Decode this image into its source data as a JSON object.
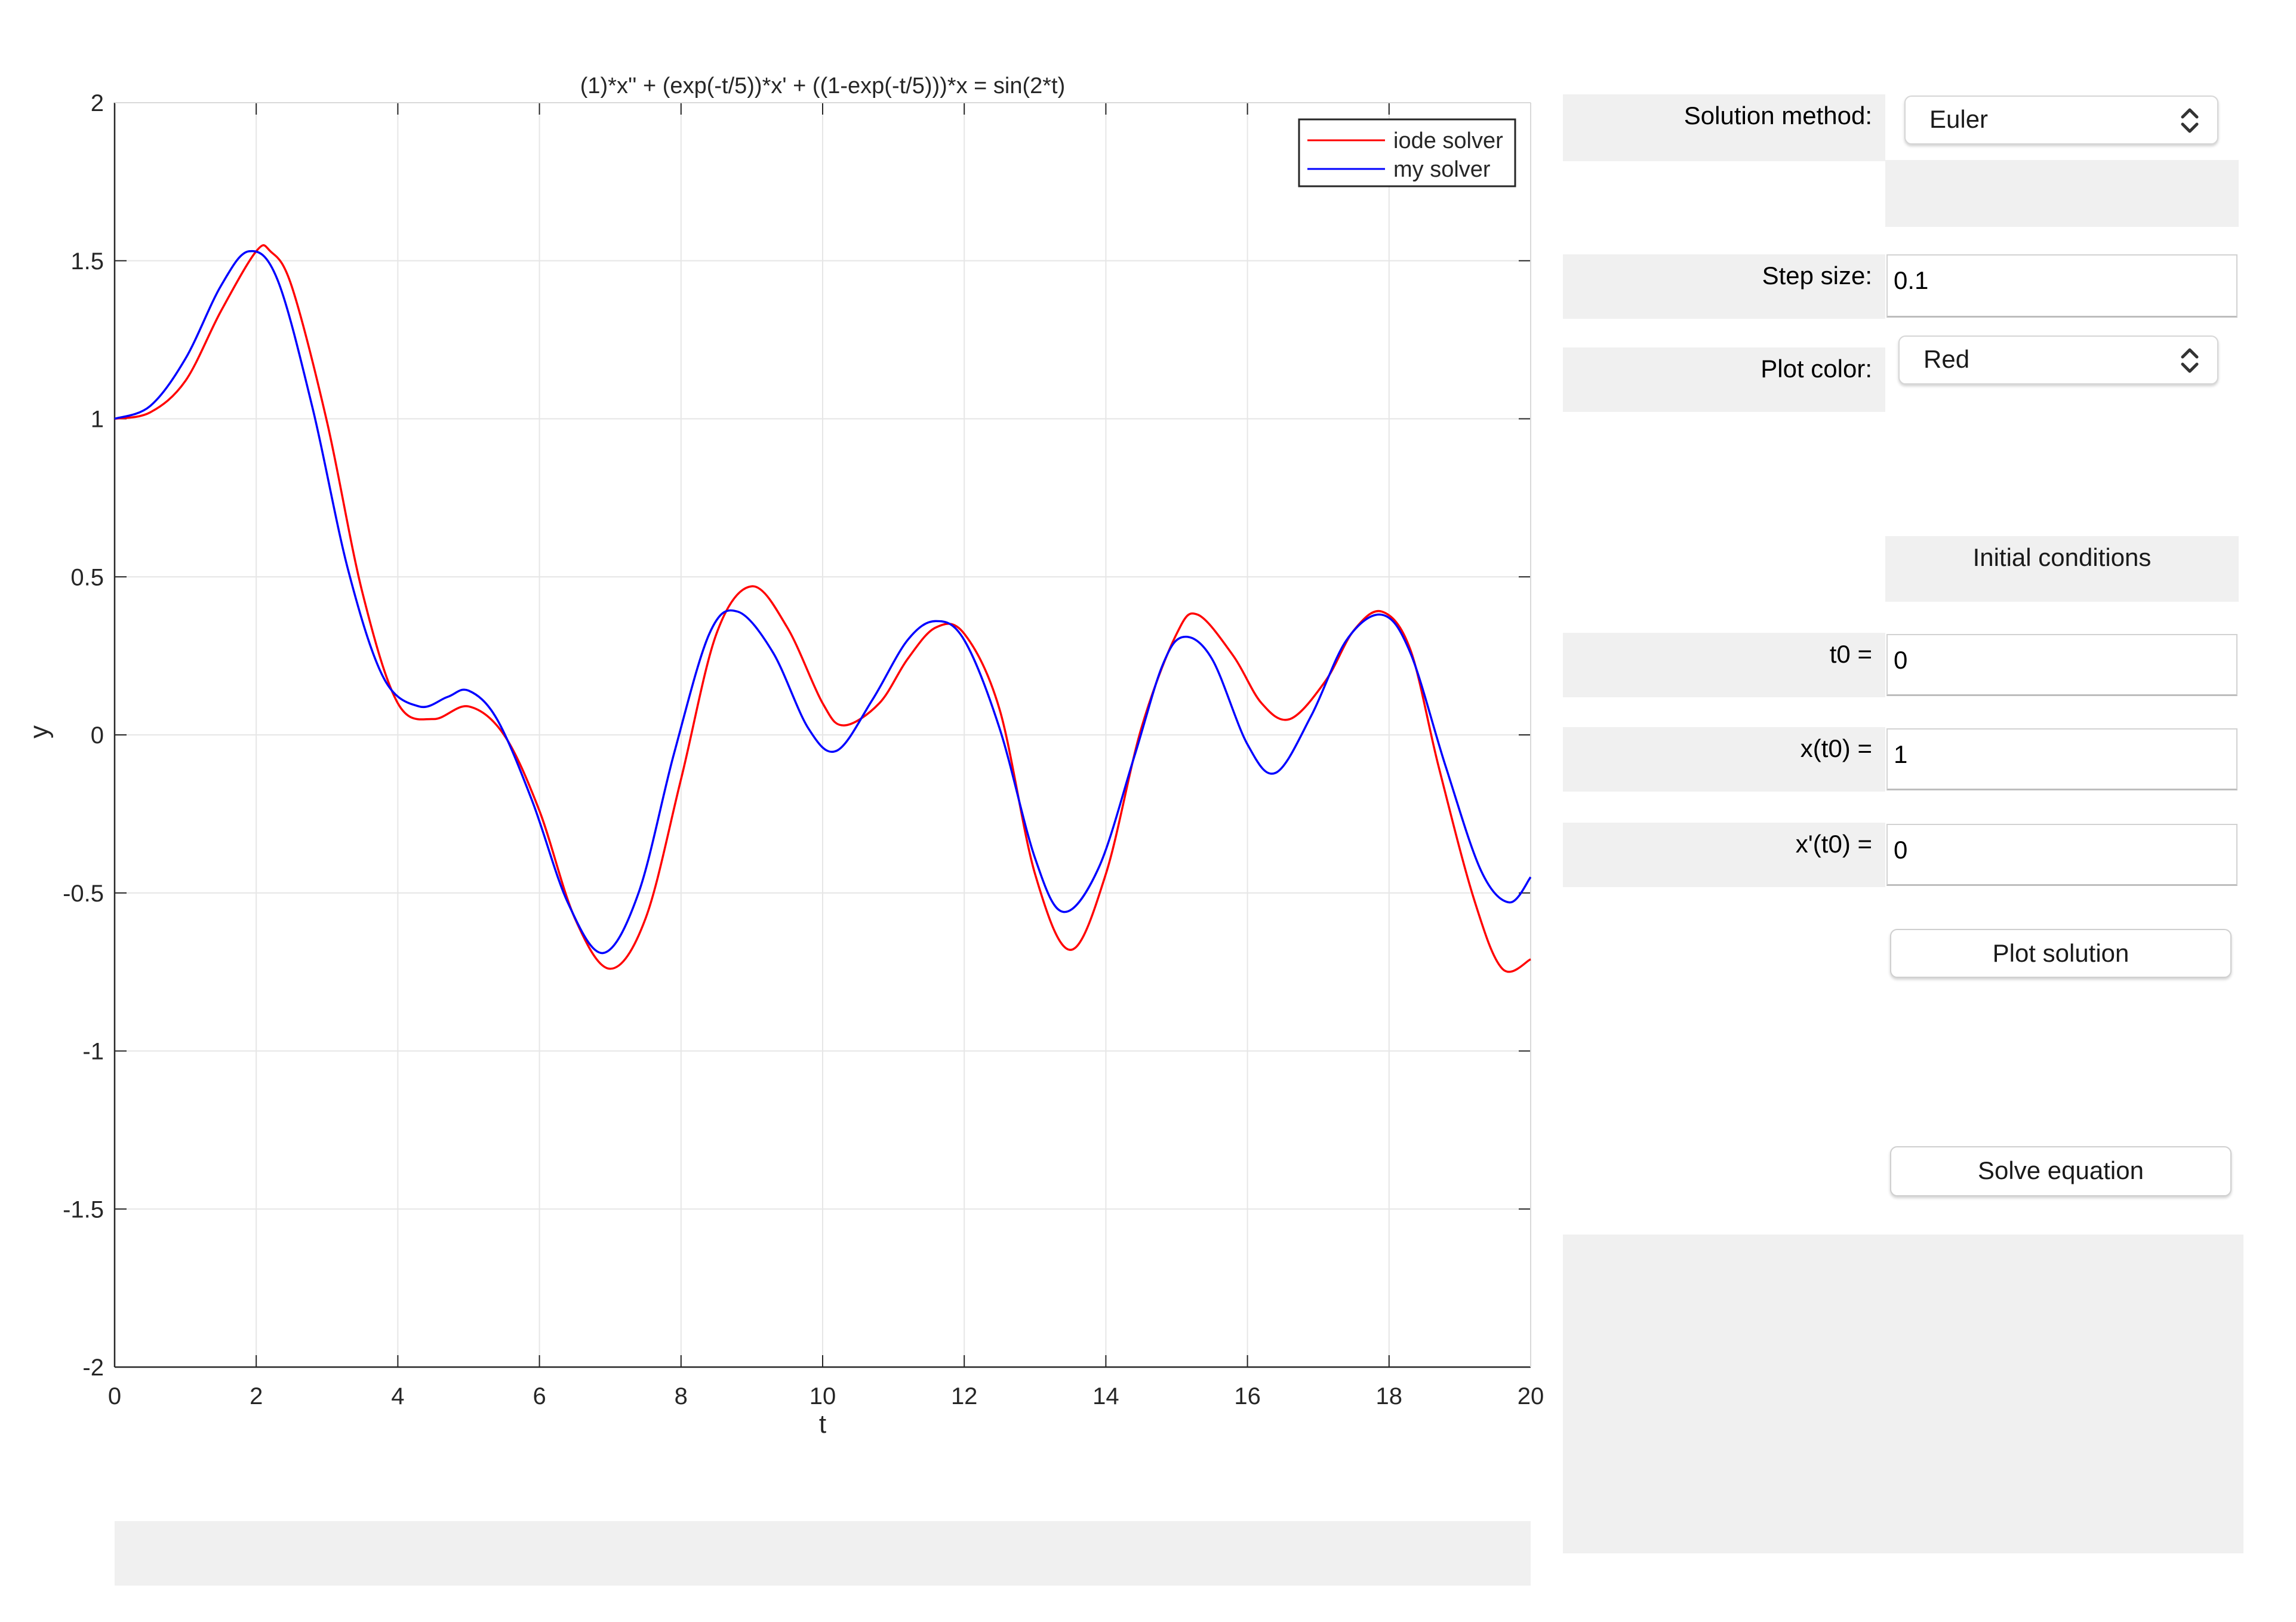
{
  "chart_data": {
    "type": "line",
    "title": "(1)*x'' + (exp(-t/5))*x' + ((1-exp(-t/5)))*x = sin(2*t)",
    "xlabel": "t",
    "ylabel": "y",
    "xlim": [
      0,
      20
    ],
    "ylim": [
      -2,
      2
    ],
    "xticks": [
      "0",
      "2",
      "4",
      "6",
      "8",
      "10",
      "12",
      "14",
      "16",
      "18",
      "20"
    ],
    "yticks": [
      "2",
      "1.5",
      "1",
      "0.5",
      "0",
      "-0.5",
      "-1",
      "-1.5",
      "-2"
    ],
    "grid": true,
    "legend_position": "top-right",
    "series": [
      {
        "name": "iode solver",
        "color": "#ff0000",
        "points": [
          [
            0,
            1.0
          ],
          [
            0.5,
            1.02
          ],
          [
            1.0,
            1.12
          ],
          [
            1.5,
            1.34
          ],
          [
            2.0,
            1.53
          ],
          [
            2.2,
            1.53
          ],
          [
            2.5,
            1.42
          ],
          [
            3.0,
            0.99
          ],
          [
            3.5,
            0.45
          ],
          [
            4.0,
            0.1
          ],
          [
            4.5,
            0.05
          ],
          [
            5.0,
            0.09
          ],
          [
            5.5,
            0.0
          ],
          [
            6.0,
            -0.24
          ],
          [
            6.5,
            -0.58
          ],
          [
            7.0,
            -0.74
          ],
          [
            7.5,
            -0.58
          ],
          [
            8.0,
            -0.14
          ],
          [
            8.5,
            0.32
          ],
          [
            9.0,
            0.47
          ],
          [
            9.5,
            0.34
          ],
          [
            10.0,
            0.1
          ],
          [
            10.3,
            0.03
          ],
          [
            10.8,
            0.1
          ],
          [
            11.2,
            0.24
          ],
          [
            11.6,
            0.34
          ],
          [
            12.0,
            0.32
          ],
          [
            12.5,
            0.08
          ],
          [
            13.0,
            -0.44
          ],
          [
            13.5,
            -0.68
          ],
          [
            14.0,
            -0.44
          ],
          [
            14.5,
            0.02
          ],
          [
            15.0,
            0.32
          ],
          [
            15.3,
            0.38
          ],
          [
            15.8,
            0.25
          ],
          [
            16.2,
            0.1
          ],
          [
            16.6,
            0.05
          ],
          [
            17.1,
            0.17
          ],
          [
            17.5,
            0.33
          ],
          [
            17.9,
            0.39
          ],
          [
            18.3,
            0.27
          ],
          [
            18.7,
            -0.1
          ],
          [
            19.2,
            -0.52
          ],
          [
            19.6,
            -0.74
          ],
          [
            20.0,
            -0.71
          ]
        ]
      },
      {
        "name": "my solver",
        "color": "#0000ff",
        "points": [
          [
            0,
            1.0
          ],
          [
            0.5,
            1.04
          ],
          [
            1.0,
            1.19
          ],
          [
            1.5,
            1.42
          ],
          [
            1.9,
            1.53
          ],
          [
            2.3,
            1.44
          ],
          [
            2.8,
            1.03
          ],
          [
            3.3,
            0.52
          ],
          [
            3.8,
            0.18
          ],
          [
            4.3,
            0.09
          ],
          [
            4.7,
            0.12
          ],
          [
            5.0,
            0.14
          ],
          [
            5.4,
            0.05
          ],
          [
            5.9,
            -0.21
          ],
          [
            6.4,
            -0.53
          ],
          [
            6.9,
            -0.69
          ],
          [
            7.4,
            -0.5
          ],
          [
            7.9,
            -0.06
          ],
          [
            8.4,
            0.32
          ],
          [
            8.8,
            0.39
          ],
          [
            9.3,
            0.26
          ],
          [
            9.8,
            0.02
          ],
          [
            10.2,
            -0.05
          ],
          [
            10.7,
            0.11
          ],
          [
            11.2,
            0.3
          ],
          [
            11.6,
            0.36
          ],
          [
            12.0,
            0.3
          ],
          [
            12.5,
            0.02
          ],
          [
            13.0,
            -0.39
          ],
          [
            13.4,
            -0.56
          ],
          [
            13.9,
            -0.42
          ],
          [
            14.4,
            -0.07
          ],
          [
            14.8,
            0.22
          ],
          [
            15.1,
            0.31
          ],
          [
            15.5,
            0.24
          ],
          [
            16.0,
            -0.03
          ],
          [
            16.4,
            -0.12
          ],
          [
            16.9,
            0.06
          ],
          [
            17.4,
            0.3
          ],
          [
            17.9,
            0.38
          ],
          [
            18.3,
            0.26
          ],
          [
            18.8,
            -0.1
          ],
          [
            19.3,
            -0.43
          ],
          [
            19.7,
            -0.53
          ],
          [
            20.0,
            -0.45
          ]
        ]
      }
    ]
  },
  "controls": {
    "solution_method": {
      "label": "Solution method:",
      "value": "Euler"
    },
    "step_size": {
      "label": "Step size:",
      "value": "0.1"
    },
    "plot_color": {
      "label": "Plot color:",
      "value": "Red"
    },
    "initial_conditions_label": "Initial conditions",
    "t0": {
      "label": "t0 =",
      "value": "0"
    },
    "x_t0": {
      "label": "x(t0) =",
      "value": "1"
    },
    "xp_t0": {
      "label": "x'(t0) =",
      "value": "0"
    },
    "plot_solution_button": "Plot solution",
    "solve_equation_button": "Solve equation"
  }
}
